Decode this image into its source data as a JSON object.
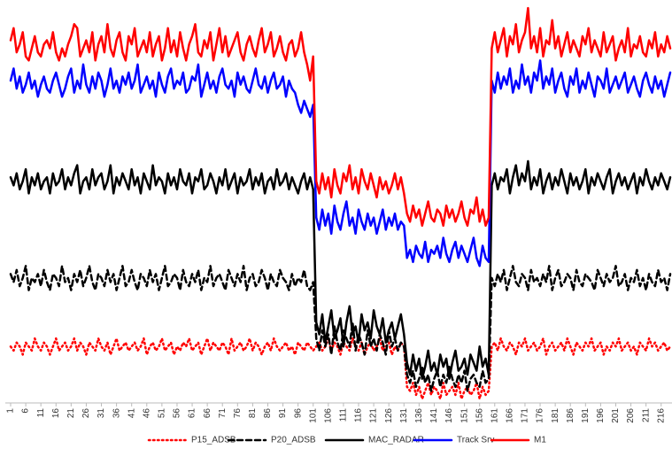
{
  "chart_data": {
    "type": "line",
    "categories": [
      "1",
      null,
      null,
      null,
      null,
      "6",
      null,
      null,
      null,
      null,
      "11",
      null,
      null,
      null,
      null,
      "16",
      null,
      null,
      null,
      null,
      "21",
      null,
      null,
      null,
      null,
      "26",
      null,
      null,
      null,
      null,
      "31",
      null,
      null,
      null,
      null,
      "36",
      null,
      null,
      null,
      null,
      "41",
      null,
      null,
      null,
      null,
      "46",
      null,
      null,
      null,
      null,
      "51",
      null,
      null,
      null,
      null,
      "56",
      null,
      null,
      null,
      null,
      "61",
      null,
      null,
      null,
      null,
      "66",
      null,
      null,
      null,
      null,
      "71",
      null,
      null,
      null,
      null,
      "76",
      null,
      null,
      null,
      null,
      "81",
      null,
      null,
      null,
      null,
      "86",
      null,
      null,
      null,
      null,
      "91",
      null,
      null,
      null,
      null,
      "96",
      null,
      null,
      null,
      null,
      "101",
      null,
      null,
      null,
      null,
      "106",
      null,
      null,
      null,
      null,
      "111",
      null,
      null,
      null,
      null,
      "116",
      null,
      null,
      null,
      null,
      "121",
      null,
      null,
      null,
      null,
      "126",
      null,
      null,
      null,
      null,
      "131",
      null,
      null,
      null,
      null,
      "136",
      null,
      null,
      null,
      null,
      "141",
      null,
      null,
      null,
      null,
      "146",
      null,
      null,
      null,
      null,
      "151",
      null,
      null,
      null,
      null,
      "156",
      null,
      null,
      null,
      null,
      "161",
      null,
      null,
      null,
      null,
      "166",
      null,
      null,
      null,
      null,
      "171",
      null,
      null,
      null,
      null,
      "176",
      null,
      null,
      null,
      null,
      "181",
      null,
      null,
      null,
      null,
      "186",
      null,
      null,
      null,
      null,
      "191",
      null,
      null,
      null,
      null,
      "196",
      null,
      null,
      null,
      null,
      "201",
      null,
      null,
      null,
      null,
      "206",
      null,
      null,
      null,
      null,
      "211",
      null,
      null,
      null,
      null,
      "216",
      null,
      null,
      null
    ],
    "ylim": [
      0,
      100
    ],
    "series": [
      {
        "name": "P15_ADSB",
        "color": "#ff0000",
        "line_style": "dotted",
        "values": [
          14,
          13,
          15,
          14,
          12,
          15,
          14,
          13,
          16,
          14,
          13,
          15,
          14,
          12,
          14,
          16,
          13,
          14,
          15,
          13,
          14,
          16,
          13,
          15,
          14,
          12,
          15,
          14,
          13,
          16,
          14,
          13,
          15,
          12,
          14,
          16,
          13,
          14,
          15,
          13,
          14,
          15,
          13,
          14,
          16,
          12,
          14,
          15,
          13,
          14,
          16,
          13,
          14,
          15,
          12,
          14,
          13,
          15,
          14,
          16,
          13,
          14,
          15,
          12,
          14,
          16,
          13,
          15,
          14,
          13,
          15,
          14,
          12,
          16,
          13,
          14,
          15,
          13,
          14,
          16,
          13,
          15,
          14,
          12,
          14,
          15,
          13,
          16,
          14,
          13,
          14,
          15,
          13,
          14,
          12,
          15,
          14,
          13,
          15,
          14,
          13,
          14,
          15,
          13,
          14,
          16,
          13,
          15,
          14,
          12,
          15,
          14,
          13,
          16,
          14,
          13,
          15,
          12,
          14,
          15,
          13,
          14,
          16,
          13,
          14,
          15,
          12,
          14,
          13,
          15,
          14,
          4,
          3,
          5,
          2,
          4,
          1,
          3,
          5,
          2,
          4,
          3,
          1,
          5,
          2,
          3,
          4,
          2,
          5,
          1,
          3,
          4,
          2,
          3,
          5,
          1,
          4,
          2,
          3,
          14,
          15,
          13,
          16,
          14,
          13,
          15,
          14,
          12,
          15,
          14,
          16,
          13,
          14,
          15,
          13,
          14,
          16,
          12,
          14,
          15,
          13,
          14,
          15,
          13,
          16,
          14,
          12,
          15,
          14,
          13,
          15,
          14,
          16,
          13,
          14,
          15,
          12,
          14,
          13,
          15,
          14,
          16,
          13,
          14,
          15,
          13,
          14,
          12,
          15,
          14,
          13,
          16,
          14,
          15,
          13,
          14,
          15,
          13,
          14
        ]
      },
      {
        "name": "P20_ADSB",
        "color": "#000000",
        "line_style": "dashed",
        "values": [
          32,
          30,
          33,
          29,
          31,
          34,
          28,
          31,
          30,
          32,
          29,
          33,
          30,
          28,
          32,
          31,
          29,
          34,
          30,
          31,
          28,
          32,
          30,
          33,
          29,
          31,
          34,
          30,
          28,
          32,
          31,
          29,
          33,
          30,
          32,
          28,
          31,
          34,
          29,
          30,
          33,
          30,
          28,
          32,
          31,
          29,
          33,
          30,
          32,
          28,
          31,
          34,
          29,
          30,
          32,
          31,
          28,
          33,
          30,
          29,
          32,
          30,
          33,
          28,
          31,
          30,
          34,
          29,
          31,
          32,
          30,
          28,
          33,
          31,
          29,
          32,
          30,
          34,
          28,
          31,
          32,
          29,
          30,
          33,
          31,
          28,
          32,
          30,
          29,
          33,
          31,
          30,
          28,
          32,
          29,
          31,
          30,
          33,
          29,
          28,
          30,
          16,
          13,
          18,
          14,
          17,
          12,
          19,
          15,
          13,
          18,
          16,
          14,
          20,
          13,
          17,
          15,
          12,
          18,
          14,
          16,
          13,
          17,
          15,
          12,
          18,
          14,
          16,
          13,
          15,
          14,
          7,
          5,
          8,
          4,
          6,
          9,
          5,
          7,
          3,
          6,
          8,
          4,
          7,
          5,
          9,
          6,
          4,
          7,
          5,
          8,
          3,
          6,
          7,
          5,
          4,
          8,
          5,
          6,
          31,
          29,
          32,
          30,
          33,
          28,
          31,
          34,
          30,
          29,
          32,
          31,
          28,
          33,
          30,
          31,
          29,
          32,
          30,
          34,
          28,
          31,
          33,
          29,
          30,
          32,
          31,
          28,
          33,
          30,
          29,
          32,
          31,
          30,
          28,
          33,
          31,
          29,
          32,
          30,
          31,
          34,
          29,
          30,
          32,
          28,
          31,
          30,
          33,
          29,
          31,
          28,
          32,
          30,
          29,
          33,
          30,
          31,
          28,
          32
        ]
      },
      {
        "name": "MAC_RADAR",
        "color": "#000000",
        "line_style": "solid",
        "values": [
          56,
          54,
          57,
          53,
          55,
          58,
          52,
          56,
          54,
          57,
          53,
          55,
          56,
          52,
          57,
          54,
          55,
          58,
          53,
          56,
          54,
          57,
          59,
          52,
          55,
          56,
          53,
          58,
          54,
          56,
          57,
          53,
          55,
          59,
          52,
          56,
          54,
          57,
          55,
          53,
          58,
          54,
          56,
          52,
          57,
          55,
          53,
          59,
          54,
          56,
          55,
          52,
          57,
          54,
          56,
          53,
          58,
          55,
          54,
          57,
          52,
          56,
          55,
          58,
          53,
          54,
          57,
          55,
          52,
          56,
          54,
          58,
          53,
          55,
          57,
          52,
          56,
          54,
          55,
          58,
          53,
          56,
          54,
          57,
          52,
          55,
          56,
          53,
          58,
          54,
          55,
          57,
          53,
          56,
          54,
          52,
          55,
          57,
          53,
          56,
          53,
          20,
          17,
          22,
          15,
          19,
          23,
          16,
          18,
          21,
          14,
          20,
          24,
          17,
          19,
          15,
          22,
          18,
          20,
          16,
          23,
          19,
          17,
          21,
          15,
          18,
          20,
          16,
          19,
          22,
          17,
          10,
          7,
          12,
          8,
          11,
          6,
          9,
          13,
          8,
          10,
          7,
          12,
          9,
          11,
          6,
          10,
          13,
          8,
          9,
          11,
          7,
          12,
          10,
          8,
          14,
          9,
          11,
          7,
          54,
          57,
          53,
          56,
          55,
          58,
          52,
          56,
          59,
          54,
          57,
          55,
          60,
          53,
          56,
          54,
          58,
          52,
          55,
          57,
          53,
          56,
          54,
          58,
          55,
          52,
          57,
          54,
          56,
          53,
          55,
          58,
          52,
          56,
          54,
          57,
          55,
          53,
          56,
          58,
          52,
          55,
          57,
          54,
          56,
          53,
          55,
          57,
          52,
          56,
          54,
          58,
          55,
          53,
          56,
          54,
          57,
          55,
          53,
          56
        ]
      },
      {
        "name": "Track Srv",
        "color": "#0000ff",
        "line_style": "solid",
        "values": [
          80,
          83,
          78,
          81,
          77,
          79,
          82,
          78,
          80,
          76,
          79,
          81,
          78,
          77,
          80,
          82,
          79,
          76,
          78,
          81,
          83,
          77,
          80,
          78,
          84,
          79,
          77,
          81,
          78,
          82,
          80,
          76,
          79,
          83,
          78,
          80,
          77,
          81,
          79,
          82,
          78,
          80,
          84,
          77,
          79,
          81,
          78,
          80,
          76,
          82,
          79,
          77,
          81,
          83,
          78,
          80,
          79,
          82,
          77,
          78,
          81,
          80,
          84,
          76,
          79,
          82,
          78,
          80,
          77,
          81,
          83,
          79,
          78,
          80,
          76,
          82,
          79,
          81,
          78,
          77,
          80,
          83,
          79,
          78,
          81,
          77,
          80,
          82,
          78,
          79,
          81,
          76,
          80,
          78,
          77,
          74,
          72,
          75,
          73,
          71,
          74,
          46,
          43,
          48,
          44,
          47,
          42,
          49,
          45,
          43,
          47,
          50,
          44,
          46,
          42,
          48,
          45,
          43,
          47,
          44,
          46,
          42,
          45,
          48,
          43,
          46,
          44,
          47,
          43,
          45,
          44,
          36,
          38,
          35,
          39,
          37,
          36,
          40,
          35,
          38,
          37,
          39,
          36,
          41,
          37,
          35,
          38,
          40,
          36,
          39,
          37,
          35,
          38,
          41,
          36,
          34,
          39,
          36,
          35,
          80,
          77,
          82,
          78,
          81,
          79,
          83,
          77,
          80,
          78,
          84,
          79,
          81,
          77,
          82,
          80,
          85,
          78,
          81,
          79,
          83,
          77,
          80,
          82,
          78,
          76,
          81,
          79,
          83,
          77,
          80,
          78,
          82,
          79,
          76,
          81,
          80,
          78,
          83,
          77,
          79,
          81,
          78,
          80,
          82,
          77,
          79,
          81,
          78,
          76,
          80,
          82,
          79,
          77,
          81,
          78,
          80,
          76,
          79,
          82
        ]
      },
      {
        "name": "M1",
        "color": "#ff0000",
        "line_style": "solid",
        "values": [
          90,
          93,
          87,
          89,
          92,
          86,
          85,
          88,
          91,
          87,
          86,
          89,
          90,
          88,
          92,
          87,
          85,
          88,
          86,
          89,
          91,
          94,
          93,
          86,
          88,
          90,
          87,
          92,
          85,
          89,
          91,
          87,
          94,
          88,
          86,
          90,
          92,
          87,
          85,
          91,
          89,
          93,
          86,
          88,
          90,
          87,
          92,
          86,
          89,
          91,
          85,
          88,
          93,
          87,
          90,
          86,
          92,
          88,
          85,
          89,
          91,
          94,
          87,
          86,
          90,
          88,
          92,
          85,
          89,
          93,
          87,
          91,
          86,
          88,
          90,
          92,
          87,
          85,
          89,
          91,
          88,
          86,
          90,
          93,
          87,
          89,
          92,
          86,
          88,
          91,
          87,
          85,
          89,
          90,
          86,
          88,
          92,
          87,
          84,
          80,
          86,
          55,
          52,
          57,
          53,
          56,
          51,
          58,
          54,
          52,
          57,
          55,
          59,
          53,
          56,
          52,
          58,
          55,
          53,
          57,
          54,
          51,
          56,
          53,
          55,
          52,
          54,
          57,
          53,
          56,
          52,
          47,
          45,
          49,
          46,
          48,
          44,
          47,
          50,
          46,
          45,
          48,
          47,
          44,
          49,
          46,
          48,
          45,
          47,
          50,
          46,
          44,
          48,
          47,
          51,
          45,
          48,
          44,
          46,
          88,
          92,
          87,
          90,
          93,
          86,
          91,
          89,
          94,
          87,
          90,
          92,
          98,
          88,
          91,
          87,
          93,
          86,
          90,
          89,
          95,
          88,
          91,
          86,
          89,
          92,
          87,
          90,
          88,
          86,
          91,
          89,
          93,
          87,
          90,
          88,
          86,
          92,
          87,
          89,
          91,
          85,
          88,
          90,
          87,
          93,
          86,
          89,
          88,
          91,
          87,
          86,
          90,
          88,
          92,
          86,
          89,
          87,
          91,
          88
        ]
      }
    ]
  }
}
